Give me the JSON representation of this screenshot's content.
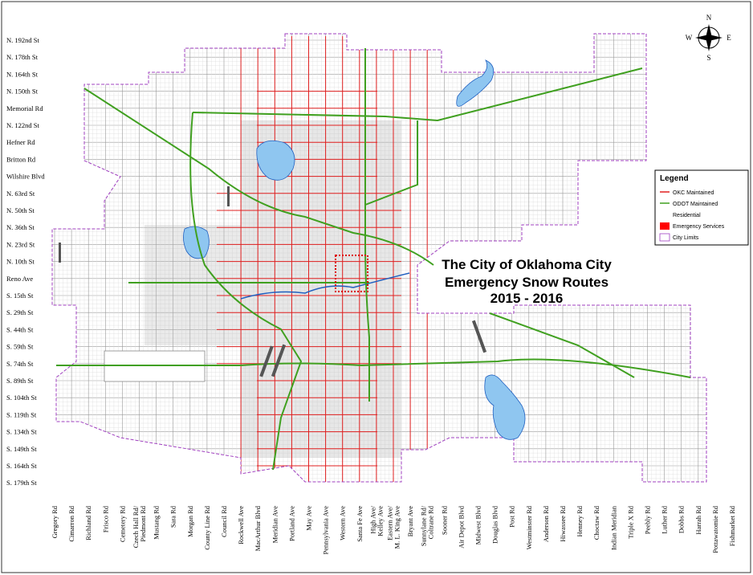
{
  "map": {
    "title_lines": [
      "The City of Oklahoma City",
      "Emergency Snow Routes",
      "2015 - 2016"
    ],
    "compass": {
      "n": "N",
      "e": "E",
      "s": "S",
      "w": "W"
    },
    "legend": {
      "title": "Legend",
      "items": [
        "OKC Maintained",
        "ODOT Maintained",
        "Residential",
        "Emergency Services",
        "City Limits"
      ]
    },
    "left_streets": [
      "N. 192nd St",
      "N. 178th St",
      "N. 164th St",
      "N. 150th St",
      "Memorial Rd",
      "N. 122nd St",
      "Hefner Rd",
      "Britton Rd",
      "Wilshire Blvd",
      "N. 63rd St",
      "N. 50th St",
      "N. 36th St",
      "N. 23rd St",
      "N. 10th St",
      "Reno Ave",
      "S. 15th St",
      "S. 29th St",
      "S. 44th St",
      "S. 59th St",
      "S. 74th St",
      "S. 89th St",
      "S. 104th St",
      "S. 119th St",
      "S. 134th St",
      "S. 149th St",
      "S. 164th St",
      "S. 179th St"
    ],
    "bottom_streets": [
      [
        "Gregory Rd"
      ],
      [
        "Cimarron Rd"
      ],
      [
        "Richland Rd"
      ],
      [
        "Frisco Rd"
      ],
      [
        "Cemetery Rd"
      ],
      [
        "Czech Hall Rd/",
        "Piedmont Rd"
      ],
      [
        "Mustang Rd"
      ],
      [
        "Sara Rd"
      ],
      [
        "Morgan Rd"
      ],
      [
        "County Line Rd"
      ],
      [
        "Council Rd"
      ],
      [
        "Rockwell Ave"
      ],
      [
        "MacArthur Blvd"
      ],
      [
        "Meridian Ave"
      ],
      [
        "Portland Ave"
      ],
      [
        "May Ave"
      ],
      [
        "Pennsylvania Ave"
      ],
      [
        "Western Ave"
      ],
      [
        "Santa Fe Ave"
      ],
      [
        "High Ave/",
        "Kelley Ave"
      ],
      [
        "Eastern Ave/",
        "M. L. King Ave"
      ],
      [
        "Bryant Ave"
      ],
      [
        "Sunnylane Rd/",
        "Coltrane Rd"
      ],
      [
        "Sooner Rd"
      ],
      [
        "Air Depot Blvd"
      ],
      [
        "Midwest Blvd"
      ],
      [
        "Douglas Blvd"
      ],
      [
        "Post Rd"
      ],
      [
        "Westminster Rd"
      ],
      [
        "Anderson Rd"
      ],
      [
        "Hiwassee Rd"
      ],
      [
        "Henney Rd"
      ],
      [
        "Choctaw Rd"
      ],
      [
        "Indian Meridian"
      ],
      [
        "Triple X Rd"
      ],
      [
        "Peebly Rd"
      ],
      [
        "Luther Rd"
      ],
      [
        "Dobbs Rd"
      ],
      [
        "Harrah Rd"
      ],
      [
        "Pottawatomie Rd"
      ],
      [
        "Fishmarket Rd"
      ]
    ]
  }
}
